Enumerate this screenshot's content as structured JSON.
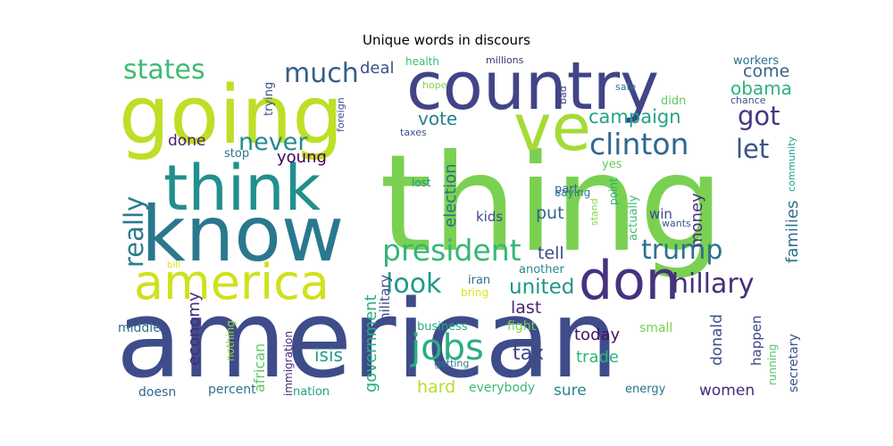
{
  "chart_data": {
    "type": "wordcloud",
    "title": "Unique words in discours",
    "palette": "viridis",
    "words": [
      {
        "text": "american",
        "color": "#3e4c8a"
      },
      {
        "text": "thing",
        "color": "#7ad151"
      },
      {
        "text": "country",
        "color": "#414487"
      },
      {
        "text": "going",
        "color": "#bddf26"
      },
      {
        "text": "know",
        "color": "#2a788e"
      },
      {
        "text": "think",
        "color": "#21908d"
      },
      {
        "text": "ve",
        "color": "#a5db36"
      },
      {
        "text": "america",
        "color": "#d0e11c"
      },
      {
        "text": "don",
        "color": "#46327e"
      },
      {
        "text": "president",
        "color": "#35b779"
      },
      {
        "text": "clinton",
        "color": "#31688e"
      },
      {
        "text": "hillary",
        "color": "#472d7b"
      },
      {
        "text": "trump",
        "color": "#2c718e"
      },
      {
        "text": "jobs",
        "color": "#29af7f"
      },
      {
        "text": "states",
        "color": "#3dbc74"
      },
      {
        "text": "much",
        "color": "#355f8d"
      },
      {
        "text": "really",
        "color": "#297b8e"
      },
      {
        "text": "never",
        "color": "#238a8d"
      },
      {
        "text": "got",
        "color": "#453882"
      },
      {
        "text": "let",
        "color": "#3b528b"
      },
      {
        "text": "look",
        "color": "#1f9a8a"
      },
      {
        "text": "united",
        "color": "#1f968b"
      },
      {
        "text": "campaign",
        "color": "#20a386"
      },
      {
        "text": "obama",
        "color": "#2db27d"
      },
      {
        "text": "come",
        "color": "#33628d"
      },
      {
        "text": "deal",
        "color": "#3b528b"
      },
      {
        "text": "vote",
        "color": "#26828e"
      },
      {
        "text": "done",
        "color": "#481f70"
      },
      {
        "text": "young",
        "color": "#440154"
      },
      {
        "text": "election",
        "color": "#2e6e8e"
      },
      {
        "text": "put",
        "color": "#33638d"
      },
      {
        "text": "tell",
        "color": "#3e4989"
      },
      {
        "text": "families",
        "color": "#2d708e"
      },
      {
        "text": "money",
        "color": "#46337f"
      },
      {
        "text": "last",
        "color": "#482475"
      },
      {
        "text": "economy",
        "color": "#482878"
      },
      {
        "text": "government",
        "color": "#28ae80"
      },
      {
        "text": "isis",
        "color": "#1e9c89"
      },
      {
        "text": "tax",
        "color": "#3f4788"
      },
      {
        "text": "today",
        "color": "#471164"
      },
      {
        "text": "trade",
        "color": "#2fb47c"
      },
      {
        "text": "donald",
        "color": "#3b518b"
      },
      {
        "text": "hard",
        "color": "#b5de2b"
      },
      {
        "text": "sure",
        "color": "#24868e"
      },
      {
        "text": "women",
        "color": "#472a7a"
      },
      {
        "text": "military",
        "color": "#3e4a89"
      },
      {
        "text": "kids",
        "color": "#3f4889"
      },
      {
        "text": "win",
        "color": "#3f4889"
      },
      {
        "text": "happen",
        "color": "#404688"
      },
      {
        "text": "secretary",
        "color": "#3b528b"
      },
      {
        "text": "middle",
        "color": "#2c728e"
      },
      {
        "text": "african",
        "color": "#5ec962"
      },
      {
        "text": "immigration",
        "color": "#482677"
      },
      {
        "text": "nothing",
        "color": "#95d840"
      },
      {
        "text": "business",
        "color": "#25ab82"
      },
      {
        "text": "fight",
        "color": "#7ad151"
      },
      {
        "text": "small",
        "color": "#75d054"
      },
      {
        "text": "percent",
        "color": "#2c728e"
      },
      {
        "text": "doesn",
        "color": "#33638d"
      },
      {
        "text": "nation",
        "color": "#1fa088"
      },
      {
        "text": "everybody",
        "color": "#3aba76"
      },
      {
        "text": "energy",
        "color": "#2c728e"
      },
      {
        "text": "running",
        "color": "#56c667"
      },
      {
        "text": "getting",
        "color": "#2a778e"
      },
      {
        "text": "bring",
        "color": "#dde318"
      },
      {
        "text": "iran",
        "color": "#2d708e"
      },
      {
        "text": "another",
        "color": "#23898e"
      },
      {
        "text": "part",
        "color": "#355e8d"
      },
      {
        "text": "yes",
        "color": "#65cb5e"
      },
      {
        "text": "saying",
        "color": "#29798e"
      },
      {
        "text": "stand",
        "color": "#8bd646"
      },
      {
        "text": "point",
        "color": "#29af7f"
      },
      {
        "text": "actually",
        "color": "#3cbb75"
      },
      {
        "text": "wants",
        "color": "#39568c"
      },
      {
        "text": "lost",
        "color": "#20928c"
      },
      {
        "text": "community",
        "color": "#1f9e89"
      },
      {
        "text": "stop",
        "color": "#2c728e"
      },
      {
        "text": "taxes",
        "color": "#3b528b"
      },
      {
        "text": "trying",
        "color": "#3a538b"
      },
      {
        "text": "foreign",
        "color": "#3e4c8a"
      },
      {
        "text": "health",
        "color": "#3dbc74"
      },
      {
        "text": "millions",
        "color": "#472d7b"
      },
      {
        "text": "workers",
        "color": "#2d708e"
      },
      {
        "text": "hope",
        "color": "#86d549"
      },
      {
        "text": "bad",
        "color": "#414487"
      },
      {
        "text": "safe",
        "color": "#2c728e"
      },
      {
        "text": "didn",
        "color": "#5ec962"
      },
      {
        "text": "chance",
        "color": "#3b528b"
      },
      {
        "text": "bill",
        "color": "#dde318"
      }
    ]
  }
}
